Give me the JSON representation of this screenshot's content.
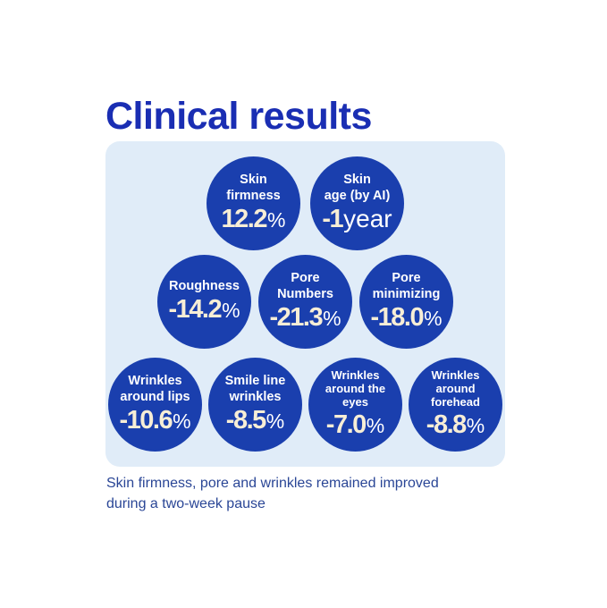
{
  "title": "Clinical results",
  "caption": "Skin firmness, pore and wrinkles remained improved\nduring a two-week pause",
  "colors": {
    "title_blue": "#1a2eb3",
    "bubble_blue": "#1a3fae",
    "panel_light_blue": "#e0ecf8",
    "number_cream": "#f7eed6",
    "label_white": "#ffffff",
    "caption_blue": "#2a4696",
    "background": "#ffffff"
  },
  "rows": [
    {
      "bubbles": [
        {
          "label": "Skin\nfirmness",
          "value": "12.2",
          "unit": "%"
        },
        {
          "label": "Skin\nage (by AI)",
          "value": "-1",
          "unit": "year"
        }
      ]
    },
    {
      "bubbles": [
        {
          "label": "Roughness",
          "value": "-14.2",
          "unit": "%"
        },
        {
          "label": "Pore\nNumbers",
          "value": "-21.3",
          "unit": "%"
        },
        {
          "label": "Pore\nminimizing",
          "value": "-18.0",
          "unit": "%"
        }
      ]
    },
    {
      "bubbles": [
        {
          "label": "Wrinkles\naround lips",
          "value": "-10.6",
          "unit": "%"
        },
        {
          "label": "Smile line\nwrinkles",
          "value": "-8.5",
          "unit": "%"
        },
        {
          "label": "Wrinkles\naround the\neyes",
          "value": "-7.0",
          "unit": "%"
        },
        {
          "label": "Wrinkles\naround\nforehead",
          "value": "-8.8",
          "unit": "%"
        }
      ]
    }
  ],
  "chart_data": {
    "type": "table",
    "title": "Clinical results",
    "categories": [
      "Skin firmness",
      "Skin age (by AI)",
      "Roughness",
      "Pore Numbers",
      "Pore minimizing",
      "Wrinkles around lips",
      "Smile line wrinkles",
      "Wrinkles around the eyes",
      "Wrinkles around forehead"
    ],
    "values": [
      12.2,
      -1,
      -14.2,
      -21.3,
      -18.0,
      -10.6,
      -8.5,
      -7.0,
      -8.8
    ],
    "units": [
      "%",
      "year",
      "%",
      "%",
      "%",
      "%",
      "%",
      "%",
      "%"
    ],
    "note": "Skin firmness, pore and wrinkles remained improved during a two-week pause",
    "layout_rows": [
      2,
      3,
      4
    ]
  }
}
